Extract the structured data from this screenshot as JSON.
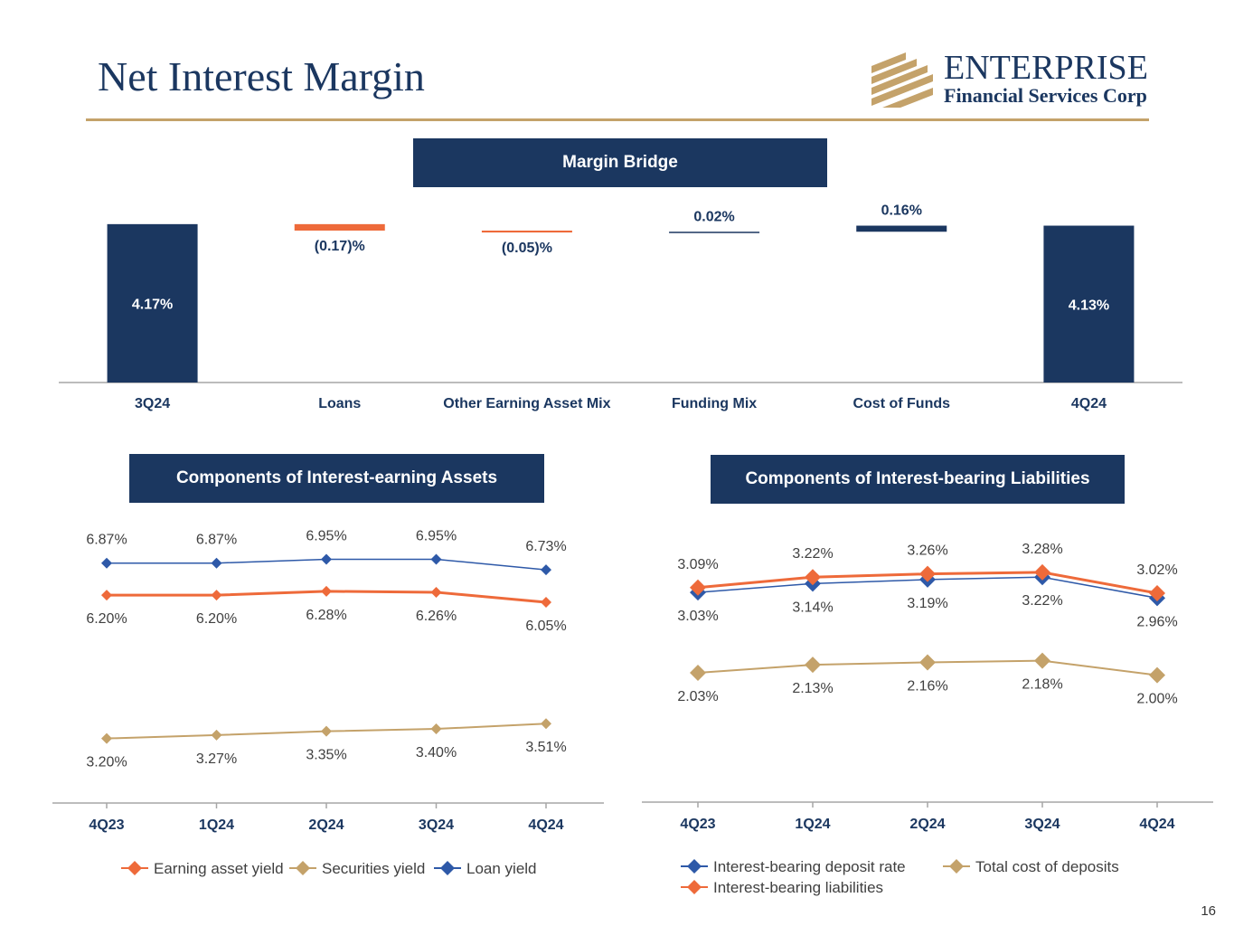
{
  "header": {
    "title": "Net Interest Margin",
    "logo_name": "ENTERPRISE",
    "logo_sub": "Financial Services Corp"
  },
  "colors": {
    "navy": "#1b3760",
    "orange": "#ee6a3a",
    "tan": "#c4a26a",
    "blue": "#2e59a8"
  },
  "page_number": "16",
  "chart_data": [
    {
      "type": "bar",
      "subtype": "waterfall",
      "title": "Margin Bridge",
      "categories": [
        "3Q24",
        "Loans",
        "Other Earning Asset Mix",
        "Funding Mix",
        "Cost of Funds",
        "4Q24"
      ],
      "values": [
        4.17,
        -0.17,
        -0.05,
        0.02,
        0.16,
        4.13
      ],
      "labels": [
        "4.17%",
        "(0.17)%",
        "(0.05)%",
        "0.02%",
        "0.16%",
        "4.13%"
      ],
      "kinds": [
        "total",
        "delta",
        "delta",
        "delta",
        "delta",
        "total"
      ]
    },
    {
      "type": "line",
      "title": "Components of Interest-earning Assets",
      "categories": [
        "4Q23",
        "1Q24",
        "2Q24",
        "3Q24",
        "4Q24"
      ],
      "ylim": [
        2.0,
        7.3
      ],
      "series": [
        {
          "name": "Earning asset yield",
          "color": "#ee6a3a",
          "values": [
            6.2,
            6.2,
            6.28,
            6.26,
            6.05
          ],
          "labels": [
            "6.20%",
            "6.20%",
            "6.28%",
            "6.26%",
            "6.05%"
          ],
          "label_pos": "below"
        },
        {
          "name": "Securities yield",
          "color": "#c4a26a",
          "values": [
            3.2,
            3.27,
            3.35,
            3.4,
            3.51
          ],
          "labels": [
            "3.20%",
            "3.27%",
            "3.35%",
            "3.40%",
            "3.51%"
          ],
          "label_pos": "below"
        },
        {
          "name": "Loan yield",
          "color": "#2e59a8",
          "values": [
            6.87,
            6.87,
            6.95,
            6.95,
            6.73
          ],
          "labels": [
            "6.87%",
            "6.87%",
            "6.95%",
            "6.95%",
            "6.73%"
          ],
          "label_pos": "above"
        }
      ]
    },
    {
      "type": "line",
      "title": "Components of Interest-bearing Liabilities",
      "categories": [
        "4Q23",
        "1Q24",
        "2Q24",
        "3Q24",
        "4Q24"
      ],
      "ylim": [
        0.5,
        3.65
      ],
      "series": [
        {
          "name": "Interest-bearing deposit rate",
          "color": "#2e59a8",
          "values": [
            3.03,
            3.14,
            3.19,
            3.22,
            2.96
          ],
          "labels": [
            "3.03%",
            "3.14%",
            "3.19%",
            "3.22%",
            "2.96%"
          ],
          "label_pos": "below"
        },
        {
          "name": "Total cost of deposits",
          "color": "#c4a26a",
          "values": [
            2.03,
            2.13,
            2.16,
            2.18,
            2.0
          ],
          "labels": [
            "2.03%",
            "2.13%",
            "2.16%",
            "2.18%",
            "2.00%"
          ],
          "label_pos": "below"
        },
        {
          "name": "Interest-bearing liabilities",
          "color": "#ee6a3a",
          "values": [
            3.09,
            3.22,
            3.26,
            3.28,
            3.02
          ],
          "labels": [
            "3.09%",
            "3.22%",
            "3.26%",
            "3.28%",
            "3.02%"
          ],
          "label_pos": "above"
        }
      ]
    }
  ]
}
